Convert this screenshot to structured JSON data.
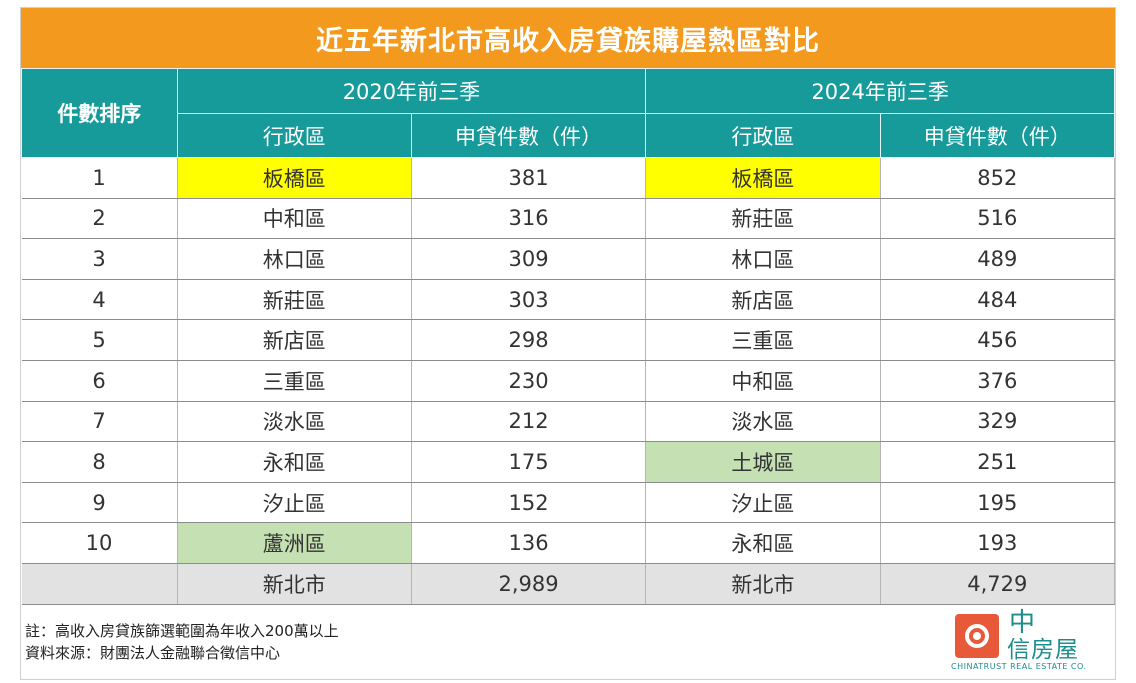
{
  "title": "近五年新北市高收入房貸族購屋熱區對比",
  "header": {
    "rank": "件數排序",
    "period_a": "2020年前三季",
    "period_b": "2024年前三季",
    "district": "行政區",
    "count": "申貸件數（件）"
  },
  "rows": [
    {
      "rank": "1",
      "a_district": "板橋區",
      "a_count": "381",
      "b_district": "板橋區",
      "b_count": "852"
    },
    {
      "rank": "2",
      "a_district": "中和區",
      "a_count": "316",
      "b_district": "新莊區",
      "b_count": "516"
    },
    {
      "rank": "3",
      "a_district": "林口區",
      "a_count": "309",
      "b_district": "林口區",
      "b_count": "489"
    },
    {
      "rank": "4",
      "a_district": "新莊區",
      "a_count": "303",
      "b_district": "新店區",
      "b_count": "484"
    },
    {
      "rank": "5",
      "a_district": "新店區",
      "a_count": "298",
      "b_district": "三重區",
      "b_count": "456"
    },
    {
      "rank": "6",
      "a_district": "三重區",
      "a_count": "230",
      "b_district": "中和區",
      "b_count": "376"
    },
    {
      "rank": "7",
      "a_district": "淡水區",
      "a_count": "212",
      "b_district": "淡水區",
      "b_count": "329"
    },
    {
      "rank": "8",
      "a_district": "永和區",
      "a_count": "175",
      "b_district": "土城區",
      "b_count": "251"
    },
    {
      "rank": "9",
      "a_district": "汐止區",
      "a_count": "152",
      "b_district": "汐止區",
      "b_count": "195"
    },
    {
      "rank": "10",
      "a_district": "蘆洲區",
      "a_count": "136",
      "b_district": "永和區",
      "b_count": "193"
    }
  ],
  "total": {
    "a_district": "新北市",
    "a_count": "2,989",
    "b_district": "新北市",
    "b_count": "4,729"
  },
  "notes": {
    "note": "註：高收入房貸族篩選範圍為年收入200萬以上",
    "source": "資料來源：財團法人金融聯合徵信中心"
  },
  "logo": {
    "zhong": "中",
    "name": "信房屋",
    "english": "CHINATRUST REAL ESTATE CO."
  },
  "colors": {
    "title_bg": "#f39a1e",
    "header_bg": "#169a9a",
    "highlight_yellow": "#ffff00",
    "highlight_green": "#c5e0b3",
    "total_bg": "#e2e2e2"
  }
}
